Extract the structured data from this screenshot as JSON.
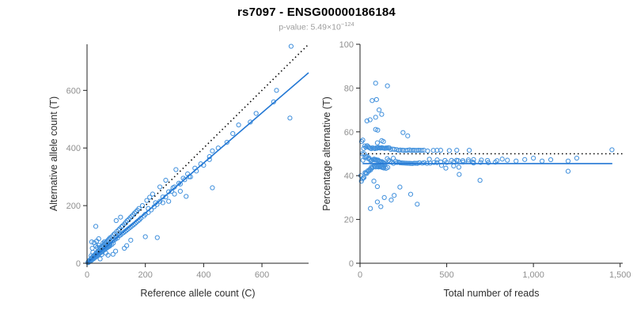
{
  "header": {
    "title": "rs7097 - ENSG00000186184",
    "subtitle_prefix": "p-value: 5.49×10",
    "subtitle_exponent": "−124"
  },
  "style": {
    "point_color": "#3f8fdc",
    "fit_line_color": "#2277d4",
    "reference_line_color": "#000000",
    "axis_color": "#222222",
    "tick_label_color": "#8f8f8f",
    "axis_label_color": "#2e2e2e"
  },
  "allele_counts": [
    [
      3,
      2
    ],
    [
      4,
      5
    ],
    [
      5,
      3
    ],
    [
      6,
      6
    ],
    [
      7,
      9
    ],
    [
      8,
      5
    ],
    [
      9,
      8
    ],
    [
      10,
      11
    ],
    [
      11,
      7
    ],
    [
      12,
      12
    ],
    [
      13,
      15
    ],
    [
      14,
      9
    ],
    [
      15,
      14
    ],
    [
      16,
      18
    ],
    [
      17,
      12
    ],
    [
      18,
      17
    ],
    [
      19,
      22
    ],
    [
      20,
      14
    ],
    [
      21,
      20
    ],
    [
      22,
      25
    ],
    [
      23,
      16
    ],
    [
      24,
      22
    ],
    [
      25,
      28
    ],
    [
      26,
      19
    ],
    [
      27,
      25
    ],
    [
      28,
      31
    ],
    [
      29,
      21
    ],
    [
      30,
      27
    ],
    [
      14,
      26
    ],
    [
      31,
      34
    ],
    [
      32,
      24
    ],
    [
      33,
      29
    ],
    [
      34,
      38
    ],
    [
      35,
      26
    ],
    [
      36,
      32
    ],
    [
      37,
      29
    ],
    [
      38,
      42
    ],
    [
      39,
      30
    ],
    [
      40,
      36
    ],
    [
      20,
      38
    ],
    [
      41,
      45
    ],
    [
      42,
      33
    ],
    [
      43,
      39
    ],
    [
      44,
      49
    ],
    [
      45,
      36
    ],
    [
      46,
      41
    ],
    [
      47,
      52
    ],
    [
      48,
      38
    ],
    [
      49,
      44
    ],
    [
      50,
      56
    ],
    [
      51,
      40
    ],
    [
      52,
      46
    ],
    [
      53,
      59
    ],
    [
      54,
      43
    ],
    [
      55,
      49
    ],
    [
      56,
      62
    ],
    [
      57,
      45
    ],
    [
      58,
      51
    ],
    [
      59,
      66
    ],
    [
      60,
      47
    ],
    [
      61,
      53
    ],
    [
      62,
      69
    ],
    [
      63,
      50
    ],
    [
      64,
      55
    ],
    [
      65,
      72
    ],
    [
      66,
      52
    ],
    [
      67,
      58
    ],
    [
      68,
      75
    ],
    [
      69,
      54
    ],
    [
      70,
      60
    ],
    [
      71,
      79
    ],
    [
      72,
      56
    ],
    [
      73,
      62
    ],
    [
      74,
      82
    ],
    [
      75,
      58
    ],
    [
      76,
      64
    ],
    [
      77,
      86
    ],
    [
      78,
      60
    ],
    [
      79,
      66
    ],
    [
      80,
      89
    ],
    [
      30,
      60
    ],
    [
      65,
      35
    ],
    [
      85,
      65
    ],
    [
      45,
      55
    ],
    [
      90,
      70
    ],
    [
      55,
      70
    ],
    [
      60,
      75
    ],
    [
      35,
      55
    ],
    [
      50,
      30
    ],
    [
      40,
      62
    ],
    [
      82,
      75
    ],
    [
      85,
      92
    ],
    [
      88,
      78
    ],
    [
      90,
      98
    ],
    [
      92,
      80
    ],
    [
      95,
      103
    ],
    [
      98,
      84
    ],
    [
      100,
      92
    ],
    [
      102,
      110
    ],
    [
      105,
      88
    ],
    [
      108,
      115
    ],
    [
      110,
      96
    ],
    [
      112,
      120
    ],
    [
      115,
      98
    ],
    [
      118,
      126
    ],
    [
      120,
      103
    ],
    [
      122,
      130
    ],
    [
      125,
      106
    ],
    [
      128,
      136
    ],
    [
      130,
      110
    ],
    [
      133,
      142
    ],
    [
      135,
      114
    ],
    [
      138,
      148
    ],
    [
      140,
      118
    ],
    [
      143,
      152
    ],
    [
      145,
      122
    ],
    [
      148,
      158
    ],
    [
      150,
      126
    ],
    [
      153,
      163
    ],
    [
      155,
      130
    ],
    [
      158,
      168
    ],
    [
      160,
      134
    ],
    [
      163,
      174
    ],
    [
      165,
      138
    ],
    [
      168,
      179
    ],
    [
      170,
      143
    ],
    [
      173,
      184
    ],
    [
      175,
      147
    ],
    [
      178,
      190
    ],
    [
      180,
      151
    ],
    [
      185,
      157
    ],
    [
      190,
      200
    ],
    [
      195,
      164
    ],
    [
      200,
      170
    ],
    [
      205,
      218
    ],
    [
      210,
      176
    ],
    [
      215,
      229
    ],
    [
      220,
      185
    ],
    [
      230,
      196
    ],
    [
      240,
      204
    ],
    [
      225,
      240
    ],
    [
      235,
      210
    ],
    [
      250,
      265
    ],
    [
      260,
      230
    ],
    [
      270,
      288
    ],
    [
      280,
      248
    ],
    [
      295,
      262
    ],
    [
      305,
      325
    ],
    [
      315,
      278
    ],
    [
      330,
      295
    ],
    [
      345,
      310
    ],
    [
      300,
      240
    ],
    [
      320,
      250
    ],
    [
      260,
      210
    ],
    [
      280,
      215
    ],
    [
      350,
      300
    ],
    [
      370,
      330
    ],
    [
      390,
      345
    ],
    [
      420,
      370
    ],
    [
      210,
      190
    ],
    [
      16,
      74
    ],
    [
      30,
      128
    ],
    [
      24,
      71
    ],
    [
      33,
      77
    ],
    [
      40,
      85
    ],
    [
      72,
      28
    ],
    [
      89,
      31
    ],
    [
      98,
      42
    ],
    [
      128,
      52
    ],
    [
      136,
      61
    ],
    [
      241,
      89
    ],
    [
      150,
      80
    ],
    [
      200,
      92
    ],
    [
      340,
      232
    ],
    [
      430,
      262
    ],
    [
      45,
      15
    ],
    [
      18,
      52
    ],
    [
      100,
      148
    ],
    [
      115,
      160
    ],
    [
      250,
      215
    ],
    [
      270,
      230
    ],
    [
      290,
      250
    ],
    [
      300,
      265
    ],
    [
      320,
      275
    ],
    [
      335,
      290
    ],
    [
      355,
      300
    ],
    [
      375,
      320
    ],
    [
      400,
      340
    ],
    [
      420,
      360
    ],
    [
      430,
      390
    ],
    [
      450,
      400
    ],
    [
      480,
      420
    ],
    [
      500,
      450
    ],
    [
      520,
      480
    ],
    [
      560,
      490
    ],
    [
      580,
      520
    ],
    [
      640,
      560
    ],
    [
      650,
      600
    ],
    [
      696,
      504
    ],
    [
      700,
      753
    ]
  ],
  "chart_data": [
    {
      "type": "scatter",
      "title": "",
      "xlabel": "Reference allele count (C)",
      "ylabel": "Alternative allele count (T)",
      "xlim": [
        0,
        760
      ],
      "ylim": [
        0,
        760
      ],
      "xticks": [
        0,
        200,
        400,
        600
      ],
      "yticks": [
        0,
        200,
        400,
        600
      ],
      "xtick_labels": [
        "0",
        "200",
        "400",
        "600"
      ],
      "ytick_labels": [
        "0",
        "200",
        "400",
        "600"
      ],
      "points_source": "allele_counts",
      "transform": "ref_vs_alt",
      "marker": "open-circle",
      "grid": false,
      "lines": [
        {
          "name": "identity-line",
          "style": "dotted",
          "color": "#000000",
          "slope": 1,
          "intercept": 0
        },
        {
          "name": "regression-line",
          "style": "solid",
          "color": "#2277d4",
          "slope": 0.87,
          "intercept": 0
        }
      ]
    },
    {
      "type": "scatter",
      "title": "",
      "xlabel": "Total number of reads",
      "ylabel": "Percentage alternative (T)",
      "xlim": [
        0,
        1515
      ],
      "ylim": [
        0,
        100
      ],
      "xticks": [
        0,
        500,
        1000,
        1500
      ],
      "yticks": [
        0,
        20,
        40,
        60,
        80,
        100
      ],
      "xtick_labels": [
        "0",
        "500",
        "1,000",
        "1,500"
      ],
      "ytick_labels": [
        "0",
        "20",
        "40",
        "60",
        "80",
        "100"
      ],
      "points_source": "allele_counts",
      "transform": "total_vs_percent",
      "marker": "open-circle",
      "grid": false,
      "lines": [
        {
          "name": "fifty-percent-line",
          "style": "dotted",
          "color": "#000000",
          "y": 50
        },
        {
          "name": "fitted-percentage-line",
          "style": "solid",
          "color": "#2277d4",
          "y": 45.5,
          "x0": 15,
          "x1": 1455
        }
      ]
    }
  ]
}
